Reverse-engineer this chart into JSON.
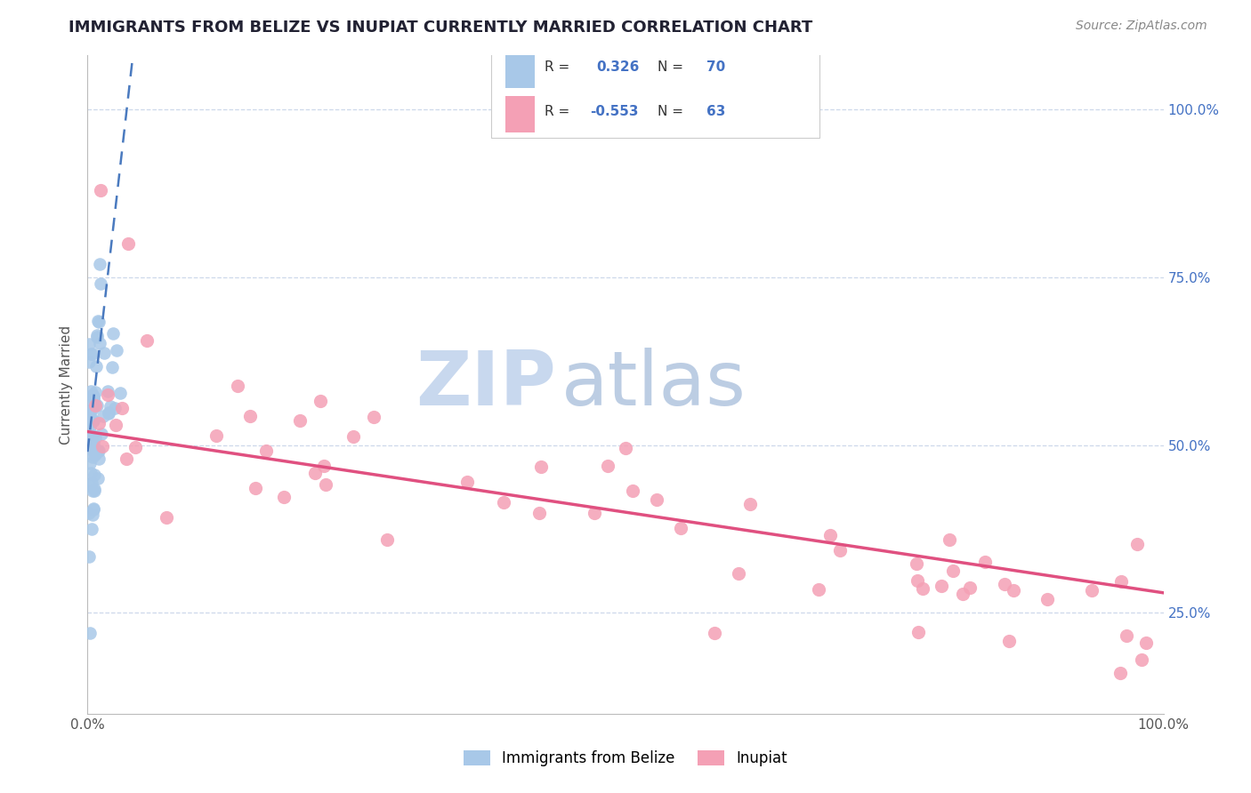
{
  "title": "IMMIGRANTS FROM BELIZE VS INUPIAT CURRENTLY MARRIED CORRELATION CHART",
  "source": "Source: ZipAtlas.com",
  "ylabel": "Currently Married",
  "y_ticks": [
    0.25,
    0.5,
    0.75,
    1.0
  ],
  "y_tick_labels": [
    "25.0%",
    "50.0%",
    "75.0%",
    "100.0%"
  ],
  "legend_label_blue": "Immigrants from Belize",
  "legend_label_pink": "Inupiat",
  "r_blue": 0.326,
  "n_blue": 70,
  "r_pink": -0.553,
  "n_pink": 63,
  "blue_color": "#a8c8e8",
  "pink_color": "#f4a0b5",
  "trendline_blue_color": "#4a7abf",
  "trendline_pink_color": "#e05080",
  "background_color": "#ffffff",
  "grid_color": "#c8d4e8",
  "xlim": [
    0.0,
    1.0
  ],
  "ylim": [
    0.1,
    1.08
  ],
  "watermark_zip_color": "#c8d8ee",
  "watermark_atlas_color": "#a0b8d8",
  "title_fontsize": 13,
  "source_fontsize": 10,
  "tick_fontsize": 11,
  "ylabel_fontsize": 11
}
